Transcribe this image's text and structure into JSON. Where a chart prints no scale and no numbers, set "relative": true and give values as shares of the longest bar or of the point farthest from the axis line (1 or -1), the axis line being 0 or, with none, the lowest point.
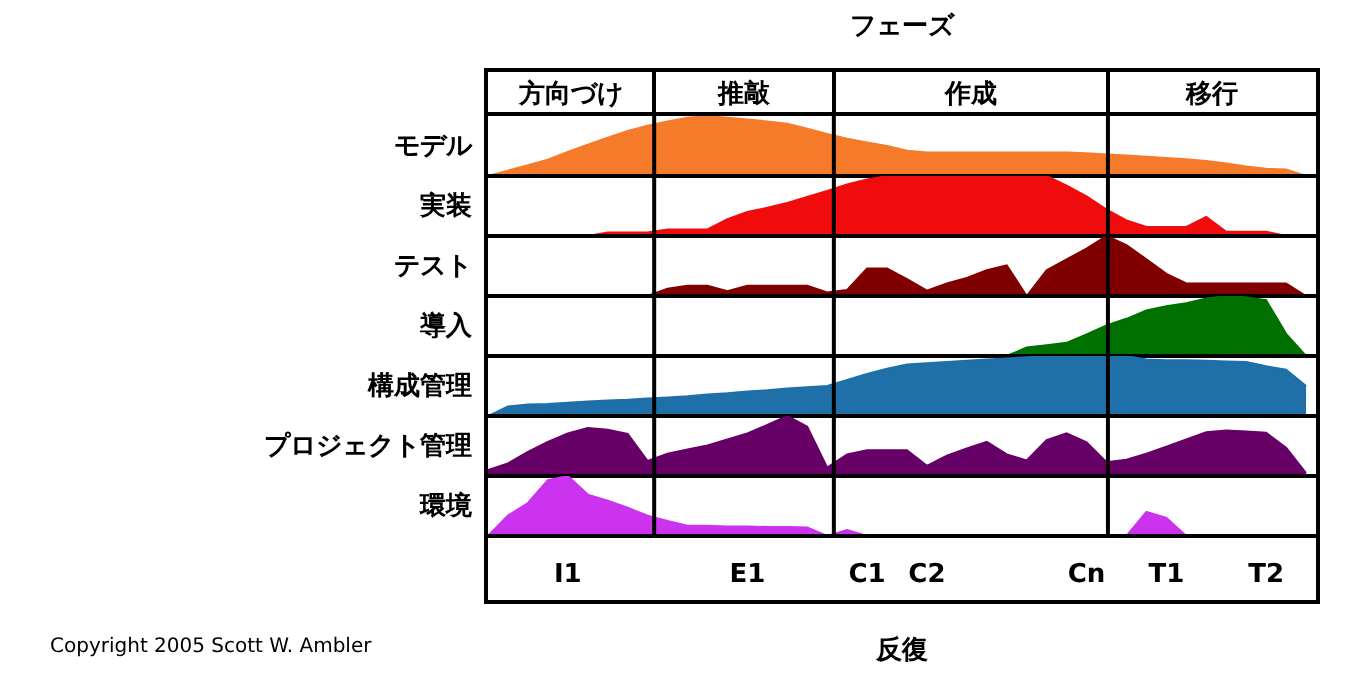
{
  "chart_data": [
    {
      "type": "other",
      "title": "フェーズ",
      "annotations": [
        "方向づけ",
        "推敲",
        "作成",
        "移行"
      ]
    },
    {
      "type": "area",
      "relative": true,
      "ylabel": "モデル",
      "tick_labels": false,
      "series": [
        {
          "color": "#f57a2a",
          "values": [
            0,
            0.09,
            0.18,
            0.27,
            0.4,
            0.52,
            0.64,
            0.75,
            0.84,
            0.91,
            0.97,
            1,
            0.97,
            0.94,
            0.91,
            0.87,
            0.79,
            0.7,
            0.62,
            0.56,
            0.5,
            0.42,
            0.39,
            0.39,
            0.39,
            0.39,
            0.39,
            0.39,
            0.39,
            0.39,
            0.38,
            0.36,
            0.34,
            0.32,
            0.3,
            0.28,
            0.25,
            0.21,
            0.16,
            0.12,
            0.11,
            0
          ]
        }
      ]
    },
    {
      "type": "area",
      "relative": true,
      "ylabel": "実装",
      "tick_labels": false,
      "series": [
        {
          "color": "#f00c0c",
          "values": [
            0,
            0,
            0,
            0,
            0,
            0,
            0.06,
            0.06,
            0.06,
            0.11,
            0.11,
            0.11,
            0.28,
            0.4,
            0.47,
            0.55,
            0.65,
            0.75,
            0.86,
            0.94,
            1,
            1,
            1,
            1,
            1,
            1,
            1,
            1,
            1,
            0.84,
            0.66,
            0.44,
            0.26,
            0.15,
            0.15,
            0.15,
            0.32,
            0.07,
            0.07,
            0.07,
            0,
            0
          ]
        }
      ]
    },
    {
      "type": "area",
      "relative": true,
      "ylabel": "テスト",
      "tick_labels": false,
      "series": [
        {
          "color": "#800000",
          "values": [
            0,
            0,
            0,
            0,
            0,
            0,
            0,
            0,
            0,
            0.12,
            0.17,
            0.17,
            0.08,
            0.17,
            0.17,
            0.17,
            0.17,
            0.06,
            0.1,
            0.46,
            0.46,
            0.28,
            0.09,
            0.21,
            0.3,
            0.43,
            0.51,
            0,
            0.43,
            0.61,
            0.79,
            1,
            0.85,
            0.61,
            0.37,
            0.21,
            0.21,
            0.21,
            0.21,
            0.21,
            0.21,
            0
          ]
        }
      ]
    },
    {
      "type": "area",
      "relative": true,
      "ylabel": "導入",
      "tick_labels": false,
      "series": [
        {
          "color": "#007000",
          "values": [
            0,
            0,
            0,
            0,
            0,
            0,
            0,
            0,
            0,
            0,
            0,
            0,
            0,
            0,
            0,
            0,
            0,
            0,
            0,
            0,
            0,
            0,
            0,
            0,
            0,
            0,
            0,
            0.14,
            0.18,
            0.22,
            0.36,
            0.51,
            0.62,
            0.76,
            0.83,
            0.88,
            0.96,
            1,
            0.98,
            0.93,
            0.37,
            0
          ]
        }
      ]
    },
    {
      "type": "area",
      "relative": true,
      "ylabel": "構成管理",
      "tick_labels": false,
      "series": [
        {
          "color": "#1f6fa8",
          "values": [
            0,
            0.16,
            0.19,
            0.2,
            0.22,
            0.24,
            0.26,
            0.27,
            0.29,
            0.31,
            0.33,
            0.36,
            0.38,
            0.41,
            0.43,
            0.46,
            0.48,
            0.5,
            0.6,
            0.7,
            0.79,
            0.86,
            0.88,
            0.9,
            0.92,
            0.94,
            0.96,
            0.98,
            1,
            1,
            1,
            1,
            1,
            0.94,
            0.93,
            0.93,
            0.92,
            0.91,
            0.9,
            0.83,
            0.77,
            0.5
          ]
        }
      ]
    },
    {
      "type": "area",
      "relative": true,
      "ylabel": "プロジェクト管理",
      "tick_labels": false,
      "series": [
        {
          "color": "#660066",
          "values": [
            0.1,
            0.21,
            0.4,
            0.57,
            0.71,
            0.8,
            0.77,
            0.7,
            0.25,
            0.37,
            0.44,
            0.51,
            0.61,
            0.71,
            0.85,
            1,
            0.82,
            0.14,
            0.36,
            0.43,
            0.43,
            0.43,
            0.17,
            0.34,
            0.46,
            0.57,
            0.36,
            0.26,
            0.6,
            0.71,
            0.56,
            0.23,
            0.27,
            0.37,
            0.49,
            0.61,
            0.73,
            0.76,
            0.74,
            0.72,
            0.47,
            0.05
          ]
        }
      ]
    },
    {
      "type": "area",
      "relative": true,
      "ylabel": "環境",
      "xlabel": "反復",
      "categories": [
        null,
        null,
        null,
        null,
        "I1",
        null,
        null,
        null,
        null,
        null,
        null,
        null,
        null,
        "E1",
        null,
        null,
        null,
        null,
        null,
        "C1",
        null,
        null,
        "C2",
        null,
        null,
        null,
        null,
        null,
        null,
        null,
        "Cn",
        null,
        null,
        null,
        "T1",
        null,
        null,
        null,
        null,
        "T2",
        null,
        null
      ],
      "annotations": [
        "Copyright 2005 Scott W. Ambler"
      ],
      "series": [
        {
          "color": "#cc33ee",
          "values": [
            0,
            0.34,
            0.55,
            0.93,
            1,
            0.69,
            0.59,
            0.47,
            0.34,
            0.25,
            0.17,
            0.17,
            0.16,
            0.16,
            0.15,
            0.15,
            0.14,
            0,
            0.1,
            0,
            0,
            0,
            0,
            0,
            0,
            0,
            0,
            0,
            0,
            0,
            0,
            0,
            0,
            0.4,
            0.3,
            0,
            0,
            0,
            0,
            0,
            0,
            0
          ]
        }
      ]
    }
  ]
}
